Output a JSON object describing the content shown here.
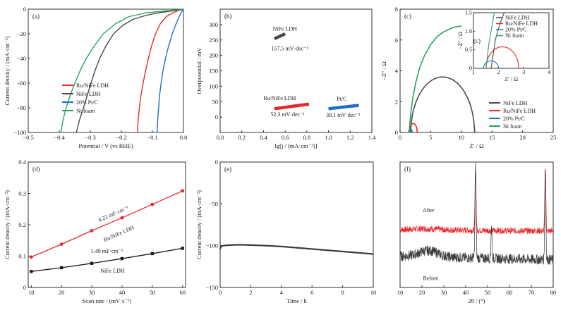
{
  "figure": {
    "panels": [
      "(a)",
      "(b)",
      "(c)",
      "(d)",
      "(e)",
      "(f)"
    ]
  },
  "chart_data": [
    {
      "id": "a",
      "type": "line",
      "label": "(a)",
      "xlabel": "Potential / V (vs RHE)",
      "ylabel": "Current density / (mA·cm⁻²)",
      "xlim": [
        -0.5,
        0.0
      ],
      "ylim": [
        -100,
        0
      ],
      "xticks": [
        -0.5,
        -0.4,
        -0.3,
        -0.2,
        -0.1,
        0.0
      ],
      "yticks": [
        -100,
        -80,
        -60,
        -40,
        -20,
        0
      ],
      "xtick_labels": [
        "−0.5",
        "−0.4",
        "−0.3",
        "−0.2",
        "−0.1",
        "0.0"
      ],
      "ytick_labels": [
        "−100",
        "−80",
        "−60",
        "−40",
        "−20",
        "0"
      ],
      "legend": {
        "position": "center-left"
      },
      "series": [
        {
          "name": "Ru/NiFe LDH",
          "color": "#e8262b",
          "x": [
            -0.148,
            -0.146,
            -0.142,
            -0.137,
            -0.13,
            -0.122,
            -0.113,
            -0.103,
            -0.09,
            -0.075,
            -0.055,
            -0.035,
            -0.015,
            0.0
          ],
          "y": [
            -100,
            -90,
            -80,
            -70,
            -60,
            -50,
            -40,
            -30,
            -20,
            -12,
            -6,
            -3,
            -1,
            0
          ]
        },
        {
          "name": "NiFe LDH",
          "color": "#4a4a4a",
          "x": [
            -0.345,
            -0.335,
            -0.322,
            -0.31,
            -0.298,
            -0.285,
            -0.27,
            -0.25,
            -0.225,
            -0.195,
            -0.16,
            -0.12,
            -0.08,
            -0.04,
            0.0
          ],
          "y": [
            -100,
            -90,
            -80,
            -70,
            -60,
            -50,
            -40,
            -30,
            -20,
            -13,
            -8,
            -5,
            -3,
            -1.5,
            0
          ]
        },
        {
          "name": "20% Pt/C",
          "color": "#1f6fc6",
          "x": [
            -0.085,
            -0.083,
            -0.08,
            -0.077,
            -0.072,
            -0.066,
            -0.058,
            -0.048,
            -0.036,
            -0.024,
            -0.012,
            -0.004,
            0.0
          ],
          "y": [
            -100,
            -90,
            -80,
            -70,
            -60,
            -50,
            -40,
            -30,
            -20,
            -12,
            -5,
            -1.5,
            0
          ]
        },
        {
          "name": "Ni foam",
          "color": "#27a35a",
          "x": [
            -0.395,
            -0.388,
            -0.378,
            -0.365,
            -0.35,
            -0.333,
            -0.313,
            -0.288,
            -0.258,
            -0.22,
            -0.175,
            -0.12,
            -0.06,
            -0.02,
            0.0
          ],
          "y": [
            -100,
            -90,
            -80,
            -70,
            -60,
            -50,
            -40,
            -30,
            -20,
            -12,
            -6,
            -3,
            -1.5,
            -0.5,
            0
          ]
        }
      ]
    },
    {
      "id": "b",
      "type": "line",
      "label": "(b)",
      "xlabel": "lg[j / (mA·cm⁻²)]",
      "ylabel": "Overpotential / mV",
      "xlim": [
        0.0,
        1.4
      ],
      "ylim": [
        -50,
        350
      ],
      "xticks": [
        0.0,
        0.2,
        0.4,
        0.6,
        0.8,
        1.0,
        1.2,
        1.4
      ],
      "yticks": [
        0,
        50,
        100,
        150,
        200,
        250,
        300
      ],
      "xtick_labels": [
        "0.0",
        "0.2",
        "0.4",
        "0.6",
        "0.8",
        "1.0",
        "1.2",
        "1.4"
      ],
      "ytick_labels": [
        "0",
        "50",
        "100",
        "150",
        "200",
        "250",
        "300"
      ],
      "series": [
        {
          "name": "NiFe LDH",
          "color": "#4a4a4a",
          "slope": "157.5 mV·dec⁻¹",
          "x": [
            0.5,
            0.6
          ],
          "y": [
            254,
            270
          ]
        },
        {
          "name": "Ru/NiFe LDH",
          "color": "#e8262b",
          "slope": "52.3 mV·dec⁻¹",
          "x": [
            0.5,
            0.82
          ],
          "y": [
            27,
            42
          ]
        },
        {
          "name": "Pt/C",
          "color": "#1f6fc6",
          "slope": "39.1 mV·dec⁻¹",
          "x": [
            1.0,
            1.28
          ],
          "y": [
            27,
            38
          ]
        }
      ]
    },
    {
      "id": "c",
      "type": "line",
      "label": "(c)",
      "xlabel": "Z′ / Ω",
      "ylabel": "−Z″ / Ω",
      "xlim": [
        0,
        25
      ],
      "ylim": [
        0,
        8
      ],
      "xticks": [
        0,
        5,
        10,
        15,
        20,
        25
      ],
      "yticks": [
        0,
        2,
        4,
        6,
        8
      ],
      "xtick_labels": [
        "0",
        "5",
        "10",
        "15",
        "20",
        "25"
      ],
      "ytick_labels": [
        "0",
        "2",
        "4",
        "6",
        "8"
      ],
      "legend": {
        "position": "bottom-right"
      },
      "series": [
        {
          "name": "NiFe LDH",
          "color": "#4a4a4a",
          "center": [
            6.95,
            0
          ],
          "radius": 5.2,
          "peak": 3.6,
          "x_start": 1.7,
          "x_end": 12.2
        },
        {
          "name": "Ru/NiFe LDH",
          "color": "#e8262b",
          "center": [
            2.15,
            0
          ],
          "radius": 0.65,
          "peak": 0.58,
          "x_start": 1.5,
          "x_end": 2.8
        },
        {
          "name": "20% Pt/C",
          "color": "#1f6fc6",
          "center": [
            1.7,
            0
          ],
          "radius": 0.3,
          "peak": 0.2,
          "x_start": 1.4,
          "x_end": 2.0
        },
        {
          "name": "Ni foam",
          "color": "#27a35a",
          "x": [
            1.5,
            1.6,
            1.8,
            2.1,
            2.6,
            3.2,
            4.0,
            5.0,
            6.0,
            7.0,
            8.0,
            9.0,
            10.0
          ],
          "y": [
            0,
            0.6,
            1.4,
            2.3,
            3.3,
            4.2,
            5.0,
            5.7,
            6.2,
            6.5,
            6.7,
            6.85,
            6.9
          ]
        }
      ],
      "inset": {
        "xlabel": "Z′ / Ω",
        "ylabel": "−Z″ / Ω",
        "xlim": [
          1,
          4
        ],
        "ylim": [
          0,
          1.5
        ],
        "xticks": [
          1,
          2,
          3,
          4
        ],
        "yticks": [
          0,
          0.5,
          1.0,
          1.5
        ],
        "xtick_labels": [
          "1",
          "2",
          "3",
          "4"
        ],
        "ytick_labels": [
          "0",
          "0.5",
          "1.0",
          "1.5"
        ],
        "legend": [
          "NiFe LDH",
          "Ru/NiFe LDH",
          "20% Pt/C",
          "Ni foam"
        ]
      }
    },
    {
      "id": "d",
      "type": "line",
      "label": "(d)",
      "xlabel": "Scan rate / (mV·s⁻¹)",
      "ylabel": "Current density / (mA·cm⁻²)",
      "xlim": [
        9,
        61
      ],
      "ylim": [
        0,
        0.4
      ],
      "xticks": [
        10,
        20,
        30,
        40,
        50,
        60
      ],
      "yticks": [
        0,
        0.1,
        0.2,
        0.3,
        0.4
      ],
      "xtick_labels": [
        "10",
        "20",
        "30",
        "40",
        "50",
        "60"
      ],
      "ytick_labels": [
        "0",
        "0.1",
        "0.2",
        "0.3",
        "0.4"
      ],
      "series": [
        {
          "name": "Ru/NiFe LDH",
          "color": "#e8262b",
          "capacitance": "4.22 mF·cm⁻²",
          "x": [
            10,
            20,
            30,
            40,
            50,
            60
          ],
          "y": [
            0.097,
            0.138,
            0.181,
            0.222,
            0.265,
            0.308
          ]
        },
        {
          "name": "NiFe LDH",
          "color": "#1a1a1a",
          "capacitance": "1.49 mF·cm⁻²",
          "x": [
            10,
            20,
            30,
            40,
            50,
            60
          ],
          "y": [
            0.051,
            0.063,
            0.077,
            0.092,
            0.108,
            0.125
          ]
        }
      ]
    },
    {
      "id": "e",
      "type": "line",
      "label": "(e)",
      "xlabel": "Time / h",
      "ylabel": "Current density / (mA·cm⁻²)",
      "xlim": [
        0,
        10
      ],
      "ylim": [
        -150,
        0
      ],
      "xticks": [
        0,
        2,
        4,
        6,
        8,
        10
      ],
      "yticks": [
        -150,
        -100,
        -50,
        0
      ],
      "xtick_labels": [
        "0",
        "2",
        "4",
        "6",
        "8",
        "10"
      ],
      "ytick_labels": [
        "−150",
        "−100",
        "−50",
        "0"
      ],
      "series": [
        {
          "name": "",
          "color": "#3a3a3a",
          "x": [
            0,
            0.05,
            0.2,
            0.5,
            1.0,
            1.5,
            2.0,
            3.0,
            4.0,
            5.0,
            6.0,
            7.0,
            8.0,
            9.0,
            10.0
          ],
          "y": [
            -104,
            -101,
            -100,
            -99.5,
            -99,
            -99,
            -99.3,
            -100,
            -101,
            -102.5,
            -104,
            -105.5,
            -107,
            -108.5,
            -110
          ]
        }
      ]
    },
    {
      "id": "f",
      "type": "line",
      "label": "(f)",
      "xlabel": "2θ / (°)",
      "ylabel": "",
      "xlim": [
        10,
        80
      ],
      "xticks": [
        10,
        20,
        30,
        40,
        50,
        60,
        70,
        80
      ],
      "xtick_labels": [
        "10",
        "20",
        "30",
        "40",
        "50",
        "60",
        "70",
        "80"
      ],
      "series": [
        {
          "name": "After",
          "color": "#e8262b",
          "baseline": 0.46,
          "noise": 0.025,
          "peaks": [
            [
              44.5,
              0.98
            ],
            [
              51.8,
              0.45
            ],
            [
              76.4,
              0.98
            ]
          ]
        },
        {
          "name": "Before",
          "color": "#3a3a3a",
          "baseline": 0.25,
          "noise": 0.04,
          "peaks": [
            [
              44.5,
              0.98
            ],
            [
              51.8,
              0.5
            ],
            [
              76.4,
              0.98
            ]
          ]
        }
      ]
    }
  ]
}
